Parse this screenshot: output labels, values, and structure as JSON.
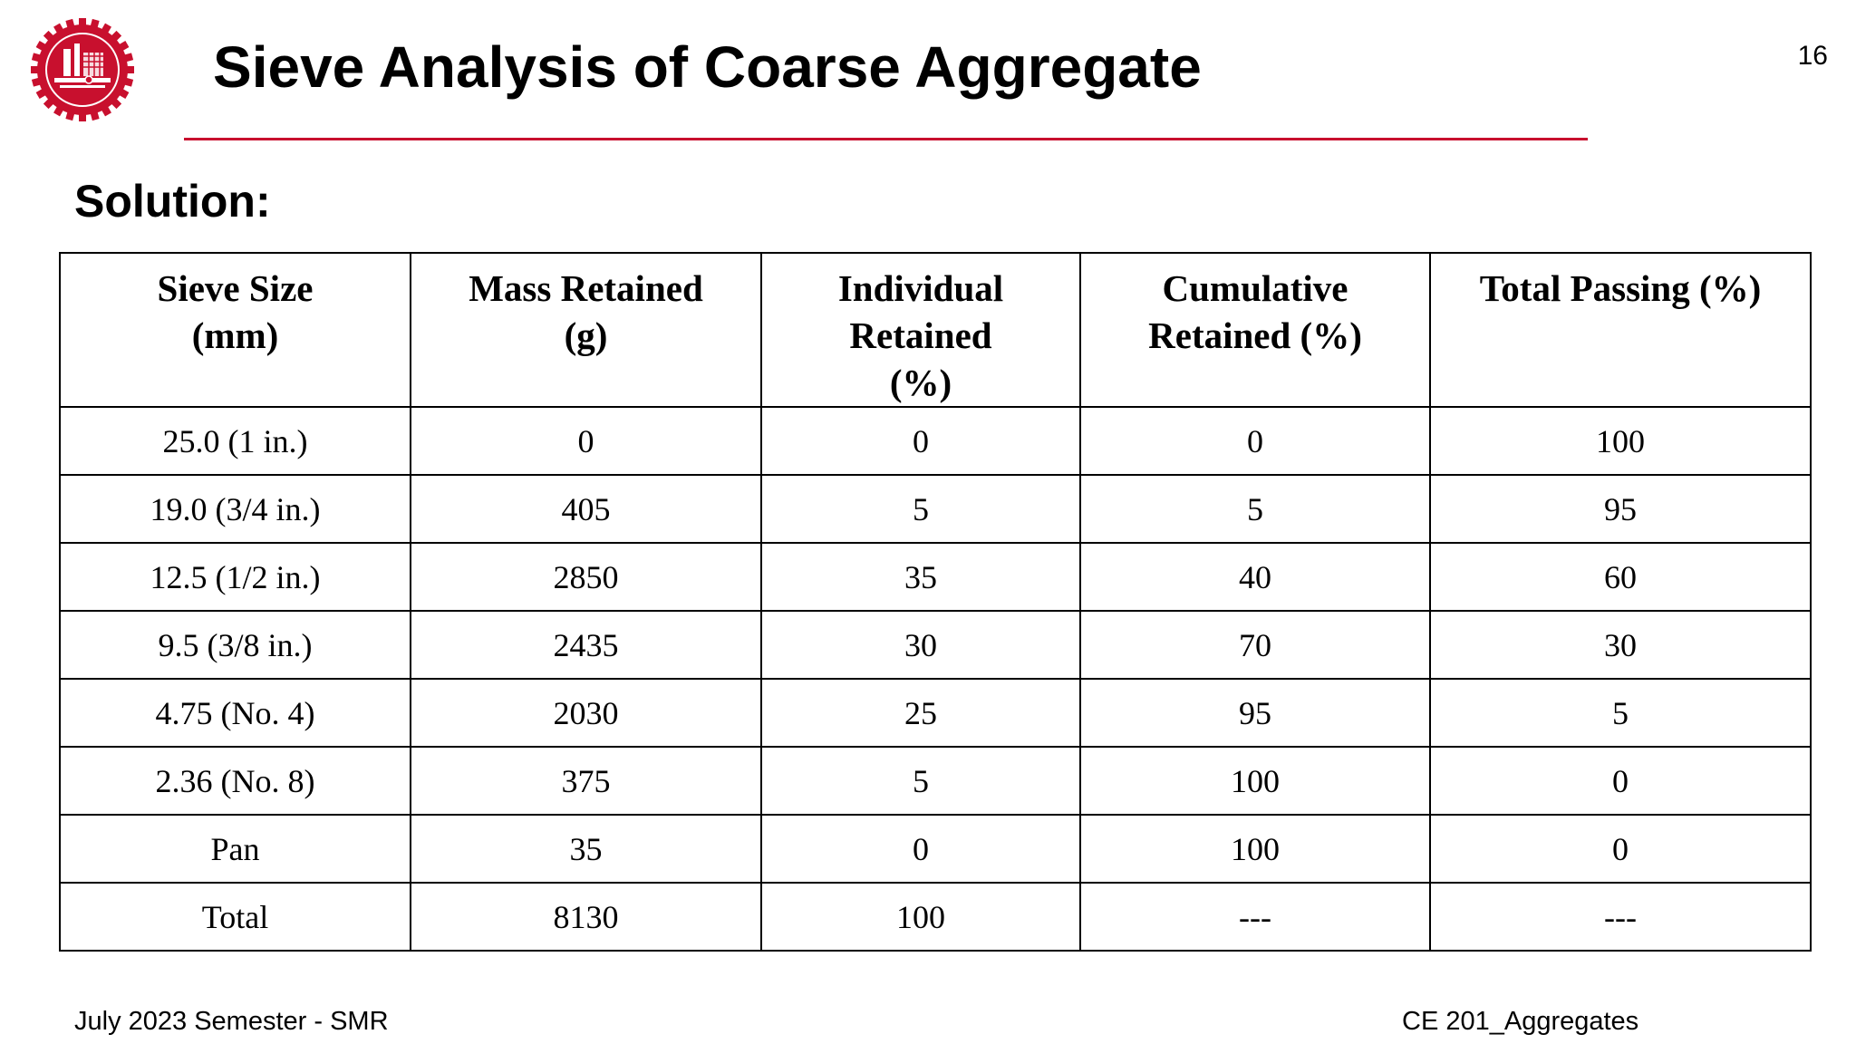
{
  "colors": {
    "accent": "#c8102e",
    "rule": "#c8102e",
    "text": "#000000"
  },
  "header": {
    "logo_icon": "university-seal-icon",
    "title": "Sieve Analysis of Coarse Aggregate",
    "page_number": "16"
  },
  "subtitle": "Solution:",
  "table": {
    "columns": [
      [
        "Sieve Size",
        "(mm)"
      ],
      [
        "Mass Retained",
        "(g)"
      ],
      [
        "Individual",
        "Retained",
        "(%)"
      ],
      [
        "Cumulative",
        "Retained (%)"
      ],
      [
        "Total Passing (%)"
      ]
    ],
    "rows": [
      [
        "25.0 (1 in.)",
        "0",
        "0",
        "0",
        "100"
      ],
      [
        "19.0 (3/4 in.)",
        "405",
        "5",
        "5",
        "95"
      ],
      [
        "12.5 (1/2 in.)",
        "2850",
        "35",
        "40",
        "60"
      ],
      [
        "9.5 (3/8 in.)",
        "2435",
        "30",
        "70",
        "30"
      ],
      [
        "4.75 (No. 4)",
        "2030",
        "25",
        "95",
        "5"
      ],
      [
        "2.36 (No. 8)",
        "375",
        "5",
        "100",
        "0"
      ],
      [
        "Pan",
        "35",
        "0",
        "100",
        "0"
      ],
      [
        "Total",
        "8130",
        "100",
        "---",
        "---"
      ]
    ]
  },
  "footer": {
    "left": "July 2023 Semester - SMR",
    "right": "CE 201_Aggregates"
  }
}
